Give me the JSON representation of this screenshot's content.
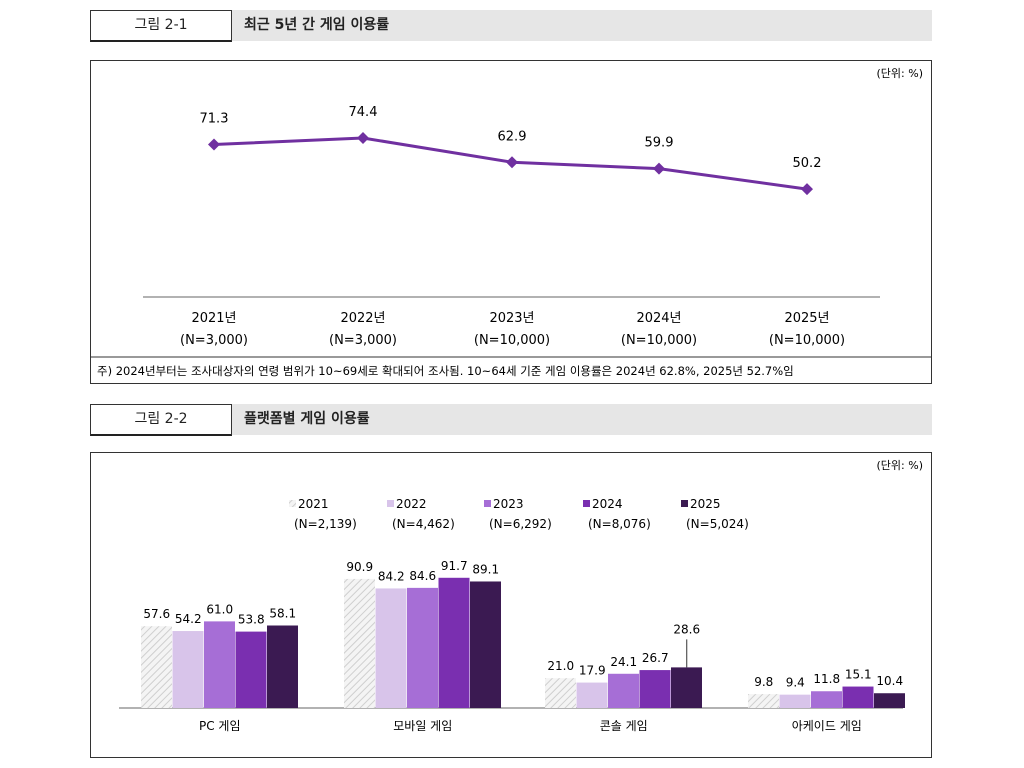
{
  "figure1": {
    "label": "그림 2-1",
    "title": "최근 5년 간 게임 이용률",
    "unit": "(단위: %)",
    "note": "주) 2024년부터는 조사대상자의 연령 범위가 10~69세로 확대되어 조사됨. 10~64세 기준 게임 이용률은 2024년 62.8%, 2025년 52.7%임"
  },
  "figure2": {
    "label": "그림 2-2",
    "title": "플랫폼별 게임 이용률",
    "unit": "(단위: %)"
  },
  "chart_data": [
    {
      "type": "line",
      "categories": [
        "2021년",
        "2022년",
        "2023년",
        "2024년",
        "2025년"
      ],
      "category_sublabels": [
        "(N=3,000)",
        "(N=3,000)",
        "(N=10,000)",
        "(N=10,000)",
        "(N=10,000)"
      ],
      "values": [
        71.3,
        74.4,
        62.9,
        59.9,
        50.2
      ],
      "color": "#7030a0",
      "marker": "diamond",
      "grid": false
    },
    {
      "type": "bar",
      "categories": [
        "PC 게임",
        "모바일 게임",
        "콘솔 게임",
        "아케이드 게임"
      ],
      "legend_position": "top",
      "series": [
        {
          "name": "2021",
          "sample": "(N=2,139)",
          "color": "#e4e4e4",
          "pattern": "hatch",
          "values": [
            57.6,
            90.9,
            21.0,
            9.8
          ]
        },
        {
          "name": "2022",
          "sample": "(N=4,462)",
          "color": "#d8c4ea",
          "values": [
            54.2,
            84.2,
            17.9,
            9.4
          ]
        },
        {
          "name": "2023",
          "sample": "(N=6,292)",
          "color": "#a66ed6",
          "values": [
            61.0,
            84.6,
            24.1,
            11.8
          ]
        },
        {
          "name": "2024",
          "sample": "(N=8,076)",
          "color": "#7a2fb0",
          "values": [
            53.8,
            91.7,
            26.7,
            15.1
          ]
        },
        {
          "name": "2025",
          "sample": "(N=5,024)",
          "color": "#3b1a52",
          "values": [
            58.1,
            89.1,
            28.6,
            10.4
          ]
        }
      ],
      "grid": false
    }
  ]
}
